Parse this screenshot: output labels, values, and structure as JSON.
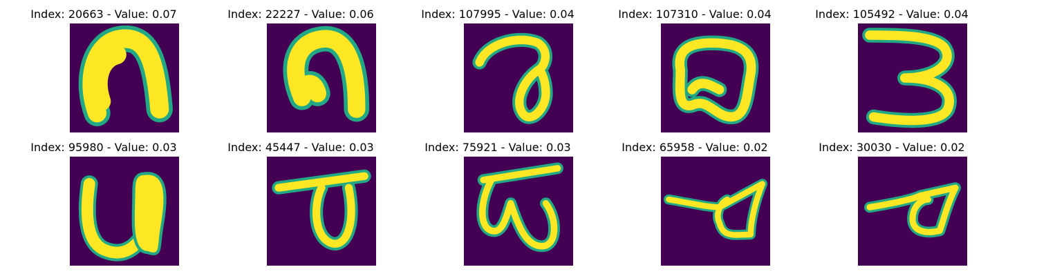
{
  "figure": {
    "background": "#440154",
    "stroke": "#fde725",
    "edge": "#22a884",
    "panels": [
      {
        "title": "Index: 20663 - Value: 0.07",
        "glyph": "broad-arch-n"
      },
      {
        "title": "Index: 22227 - Value: 0.06",
        "glyph": "hooked-arch"
      },
      {
        "title": "Index: 107995 - Value: 0.04",
        "glyph": "hook-with-loop"
      },
      {
        "title": "Index: 107310 - Value: 0.04",
        "glyph": "closed-rounded-loop"
      },
      {
        "title": "Index: 105492 - Value: 0.04",
        "glyph": "digit-three"
      },
      {
        "title": "Index: 95980 - Value: 0.03",
        "glyph": "u-shape-thick-right"
      },
      {
        "title": "Index: 45447 - Value: 0.03",
        "glyph": "bar-with-loop"
      },
      {
        "title": "Index: 75921 - Value: 0.03",
        "glyph": "bar-with-w"
      },
      {
        "title": "Index: 65958 - Value: 0.02",
        "glyph": "thin-bar-triangle"
      },
      {
        "title": "Index: 30030 - Value: 0.02",
        "glyph": "small-bar-triangle"
      }
    ]
  }
}
